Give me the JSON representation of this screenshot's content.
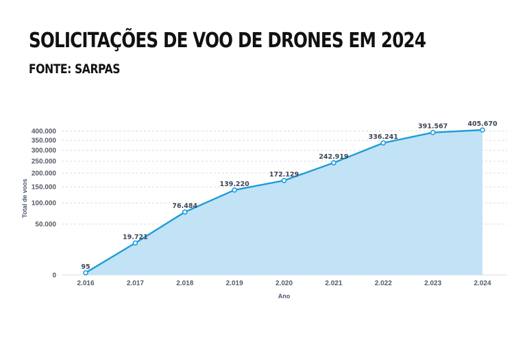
{
  "header": {
    "title": "SOLICITAÇÕES DE VOO DE DRONES EM 2024",
    "subtitle": "FONTE: SARPAS"
  },
  "chart_data": {
    "type": "area",
    "x": [
      "2.016",
      "2.017",
      "2.018",
      "2.019",
      "2.020",
      "2.021",
      "2.022",
      "2.023",
      "2.024"
    ],
    "values": [
      95,
      19721,
      76484,
      139220,
      172129,
      242919,
      336241,
      391567,
      405670
    ],
    "data_labels": [
      "95",
      "19.721",
      "76.484",
      "139.220",
      "172.129",
      "242.919",
      "336.241",
      "391.567",
      "405.670"
    ],
    "xlabel": "Ano",
    "ylabel": "Total de voos",
    "y_scale": "sqrt",
    "y_ticks": [
      0,
      50000,
      100000,
      150000,
      200000,
      250000,
      300000,
      350000,
      400000
    ],
    "y_tick_labels": [
      "0",
      "50.000",
      "100.000",
      "150.000",
      "200.000",
      "250.000",
      "300.000",
      "350.000",
      "400.000"
    ],
    "ylim": [
      0,
      405670
    ],
    "grid": true,
    "colors": {
      "line": "#1d9bd7",
      "fill": "#c2e2f6",
      "grid": "#d8dbe0",
      "marker_fill": "#ffffff"
    }
  }
}
